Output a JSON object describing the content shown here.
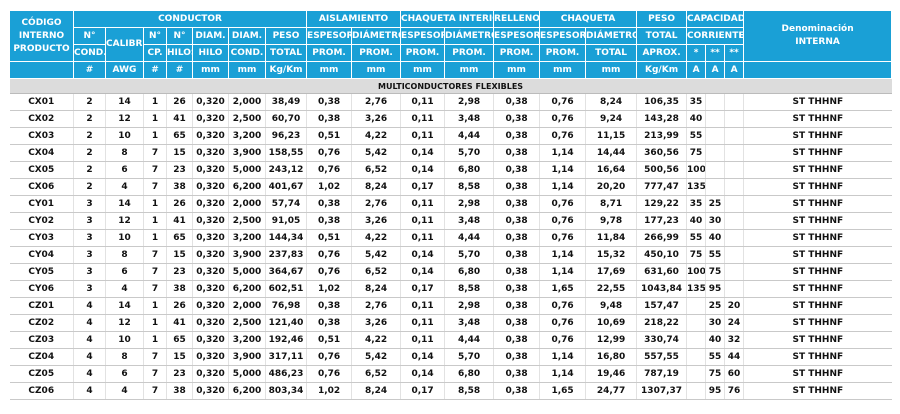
{
  "header": {
    "codigo": [
      "CÓDIGO",
      "INTERNO",
      "PRODUCTO"
    ],
    "conductor": "CONDUCTOR",
    "aislamiento": "AISLAMIENTO",
    "chaqueta_interior": "CHAQUETA INTERIOR",
    "relleno": "RELLENO",
    "chaqueta": "CHAQUETA",
    "peso": "PESO",
    "capacidad": "CAPACIDAD",
    "denominacion": [
      "Denominación",
      "INTERNA"
    ],
    "row2": [
      "N°",
      "CALIBRE",
      "N°",
      "N°",
      "DIAM.",
      "DIAM.",
      "PESO",
      "ESPESOR",
      "DIÁMETRO",
      "ESPESOR",
      "DIÁMETRO",
      "ESPESOR",
      "ESPESOR",
      "DIÁMETRO",
      "TOTAL",
      "CORRIENTE"
    ],
    "row3": [
      "COND.",
      "CP.",
      "HILOS",
      "HILO",
      "COND.",
      "TOTAL",
      "PROM.",
      "PROM.",
      "PROM.",
      "PROM.",
      "PROM.",
      "PROM.",
      "TOTAL",
      "APROX.",
      "*",
      "**",
      "**"
    ],
    "units": [
      "#",
      "AWG",
      "#",
      "#",
      "mm",
      "mm",
      "Kg/Km",
      "mm",
      "mm",
      "mm",
      "mm",
      "mm",
      "mm",
      "mm",
      "Kg/Km",
      "A",
      "A",
      "A"
    ]
  },
  "section_title": "MULTICONDUCTORES FLEXIBLES",
  "rows": [
    [
      "CX01",
      "2",
      "14",
      "1",
      "26",
      "0,320",
      "2,000",
      "38,49",
      "0,38",
      "2,76",
      "0,11",
      "2,98",
      "0,38",
      "0,76",
      "8,24",
      "106,35",
      "35",
      "",
      "",
      "ST THHNF"
    ],
    [
      "CX02",
      "2",
      "12",
      "1",
      "41",
      "0,320",
      "2,500",
      "60,70",
      "0,38",
      "3,26",
      "0,11",
      "3,48",
      "0,38",
      "0,76",
      "9,24",
      "143,28",
      "40",
      "",
      "",
      "ST THHNF"
    ],
    [
      "CX03",
      "2",
      "10",
      "1",
      "65",
      "0,320",
      "3,200",
      "96,23",
      "0,51",
      "4,22",
      "0,11",
      "4,44",
      "0,38",
      "0,76",
      "11,15",
      "213,99",
      "55",
      "",
      "",
      "ST THHNF"
    ],
    [
      "CX04",
      "2",
      "8",
      "7",
      "15",
      "0,320",
      "3,900",
      "158,55",
      "0,76",
      "5,42",
      "0,14",
      "5,70",
      "0,38",
      "1,14",
      "14,44",
      "360,56",
      "75",
      "",
      "",
      "ST THHNF"
    ],
    [
      "CX05",
      "2",
      "6",
      "7",
      "23",
      "0,320",
      "5,000",
      "243,12",
      "0,76",
      "6,52",
      "0,14",
      "6,80",
      "0,38",
      "1,14",
      "16,64",
      "500,56",
      "100",
      "",
      "",
      "ST THHNF"
    ],
    [
      "CX06",
      "2",
      "4",
      "7",
      "38",
      "0,320",
      "6,200",
      "401,67",
      "1,02",
      "8,24",
      "0,17",
      "8,58",
      "0,38",
      "1,14",
      "20,20",
      "777,47",
      "135",
      "",
      "",
      "ST THHNF"
    ],
    [
      "CY01",
      "3",
      "14",
      "1",
      "26",
      "0,320",
      "2,000",
      "57,74",
      "0,38",
      "2,76",
      "0,11",
      "2,98",
      "0,38",
      "0,76",
      "8,71",
      "129,22",
      "35",
      "25",
      "",
      "ST THHNF"
    ],
    [
      "CY02",
      "3",
      "12",
      "1",
      "41",
      "0,320",
      "2,500",
      "91,05",
      "0,38",
      "3,26",
      "0,11",
      "3,48",
      "0,38",
      "0,76",
      "9,78",
      "177,23",
      "40",
      "30",
      "",
      "ST THHNF"
    ],
    [
      "CY03",
      "3",
      "10",
      "1",
      "65",
      "0,320",
      "3,200",
      "144,34",
      "0,51",
      "4,22",
      "0,11",
      "4,44",
      "0,38",
      "0,76",
      "11,84",
      "266,99",
      "55",
      "40",
      "",
      "ST THHNF"
    ],
    [
      "CY04",
      "3",
      "8",
      "7",
      "15",
      "0,320",
      "3,900",
      "237,83",
      "0,76",
      "5,42",
      "0,14",
      "5,70",
      "0,38",
      "1,14",
      "15,32",
      "450,10",
      "75",
      "55",
      "",
      "ST THHNF"
    ],
    [
      "CY05",
      "3",
      "6",
      "7",
      "23",
      "0,320",
      "5,000",
      "364,67",
      "0,76",
      "6,52",
      "0,14",
      "6,80",
      "0,38",
      "1,14",
      "17,69",
      "631,60",
      "100",
      "75",
      "",
      "ST THHNF"
    ],
    [
      "CY06",
      "3",
      "4",
      "7",
      "38",
      "0,320",
      "6,200",
      "602,51",
      "1,02",
      "8,24",
      "0,17",
      "8,58",
      "0,38",
      "1,65",
      "22,55",
      "1043,84",
      "135",
      "95",
      "",
      "ST THHNF"
    ],
    [
      "CZ01",
      "4",
      "14",
      "1",
      "26",
      "0,320",
      "2,000",
      "76,98",
      "0,38",
      "2,76",
      "0,11",
      "2,98",
      "0,38",
      "0,76",
      "9,48",
      "157,47",
      "",
      "25",
      "20",
      "ST THHNF"
    ],
    [
      "CZ02",
      "4",
      "12",
      "1",
      "41",
      "0,320",
      "2,500",
      "121,40",
      "0,38",
      "3,26",
      "0,11",
      "3,48",
      "0,38",
      "0,76",
      "10,69",
      "218,22",
      "",
      "30",
      "24",
      "ST THHNF"
    ],
    [
      "CZ03",
      "4",
      "10",
      "1",
      "65",
      "0,320",
      "3,200",
      "192,46",
      "0,51",
      "4,22",
      "0,11",
      "4,44",
      "0,38",
      "0,76",
      "12,99",
      "330,74",
      "",
      "40",
      "32",
      "ST THHNF"
    ],
    [
      "CZ04",
      "4",
      "8",
      "7",
      "15",
      "0,320",
      "3,900",
      "317,11",
      "0,76",
      "5,42",
      "0,14",
      "5,70",
      "0,38",
      "1,14",
      "16,80",
      "557,55",
      "",
      "55",
      "44",
      "ST THHNF"
    ],
    [
      "CZ05",
      "4",
      "6",
      "7",
      "23",
      "0,320",
      "5,000",
      "486,23",
      "0,76",
      "6,52",
      "0,14",
      "6,80",
      "0,38",
      "1,14",
      "19,46",
      "787,19",
      "",
      "75",
      "60",
      "ST THHNF"
    ],
    [
      "CZ06",
      "4",
      "4",
      "7",
      "38",
      "0,320",
      "6,200",
      "803,34",
      "1,02",
      "8,24",
      "0,17",
      "8,58",
      "0,38",
      "1,65",
      "24,77",
      "1307,37",
      "",
      "95",
      "76",
      "ST THHNF"
    ]
  ]
}
